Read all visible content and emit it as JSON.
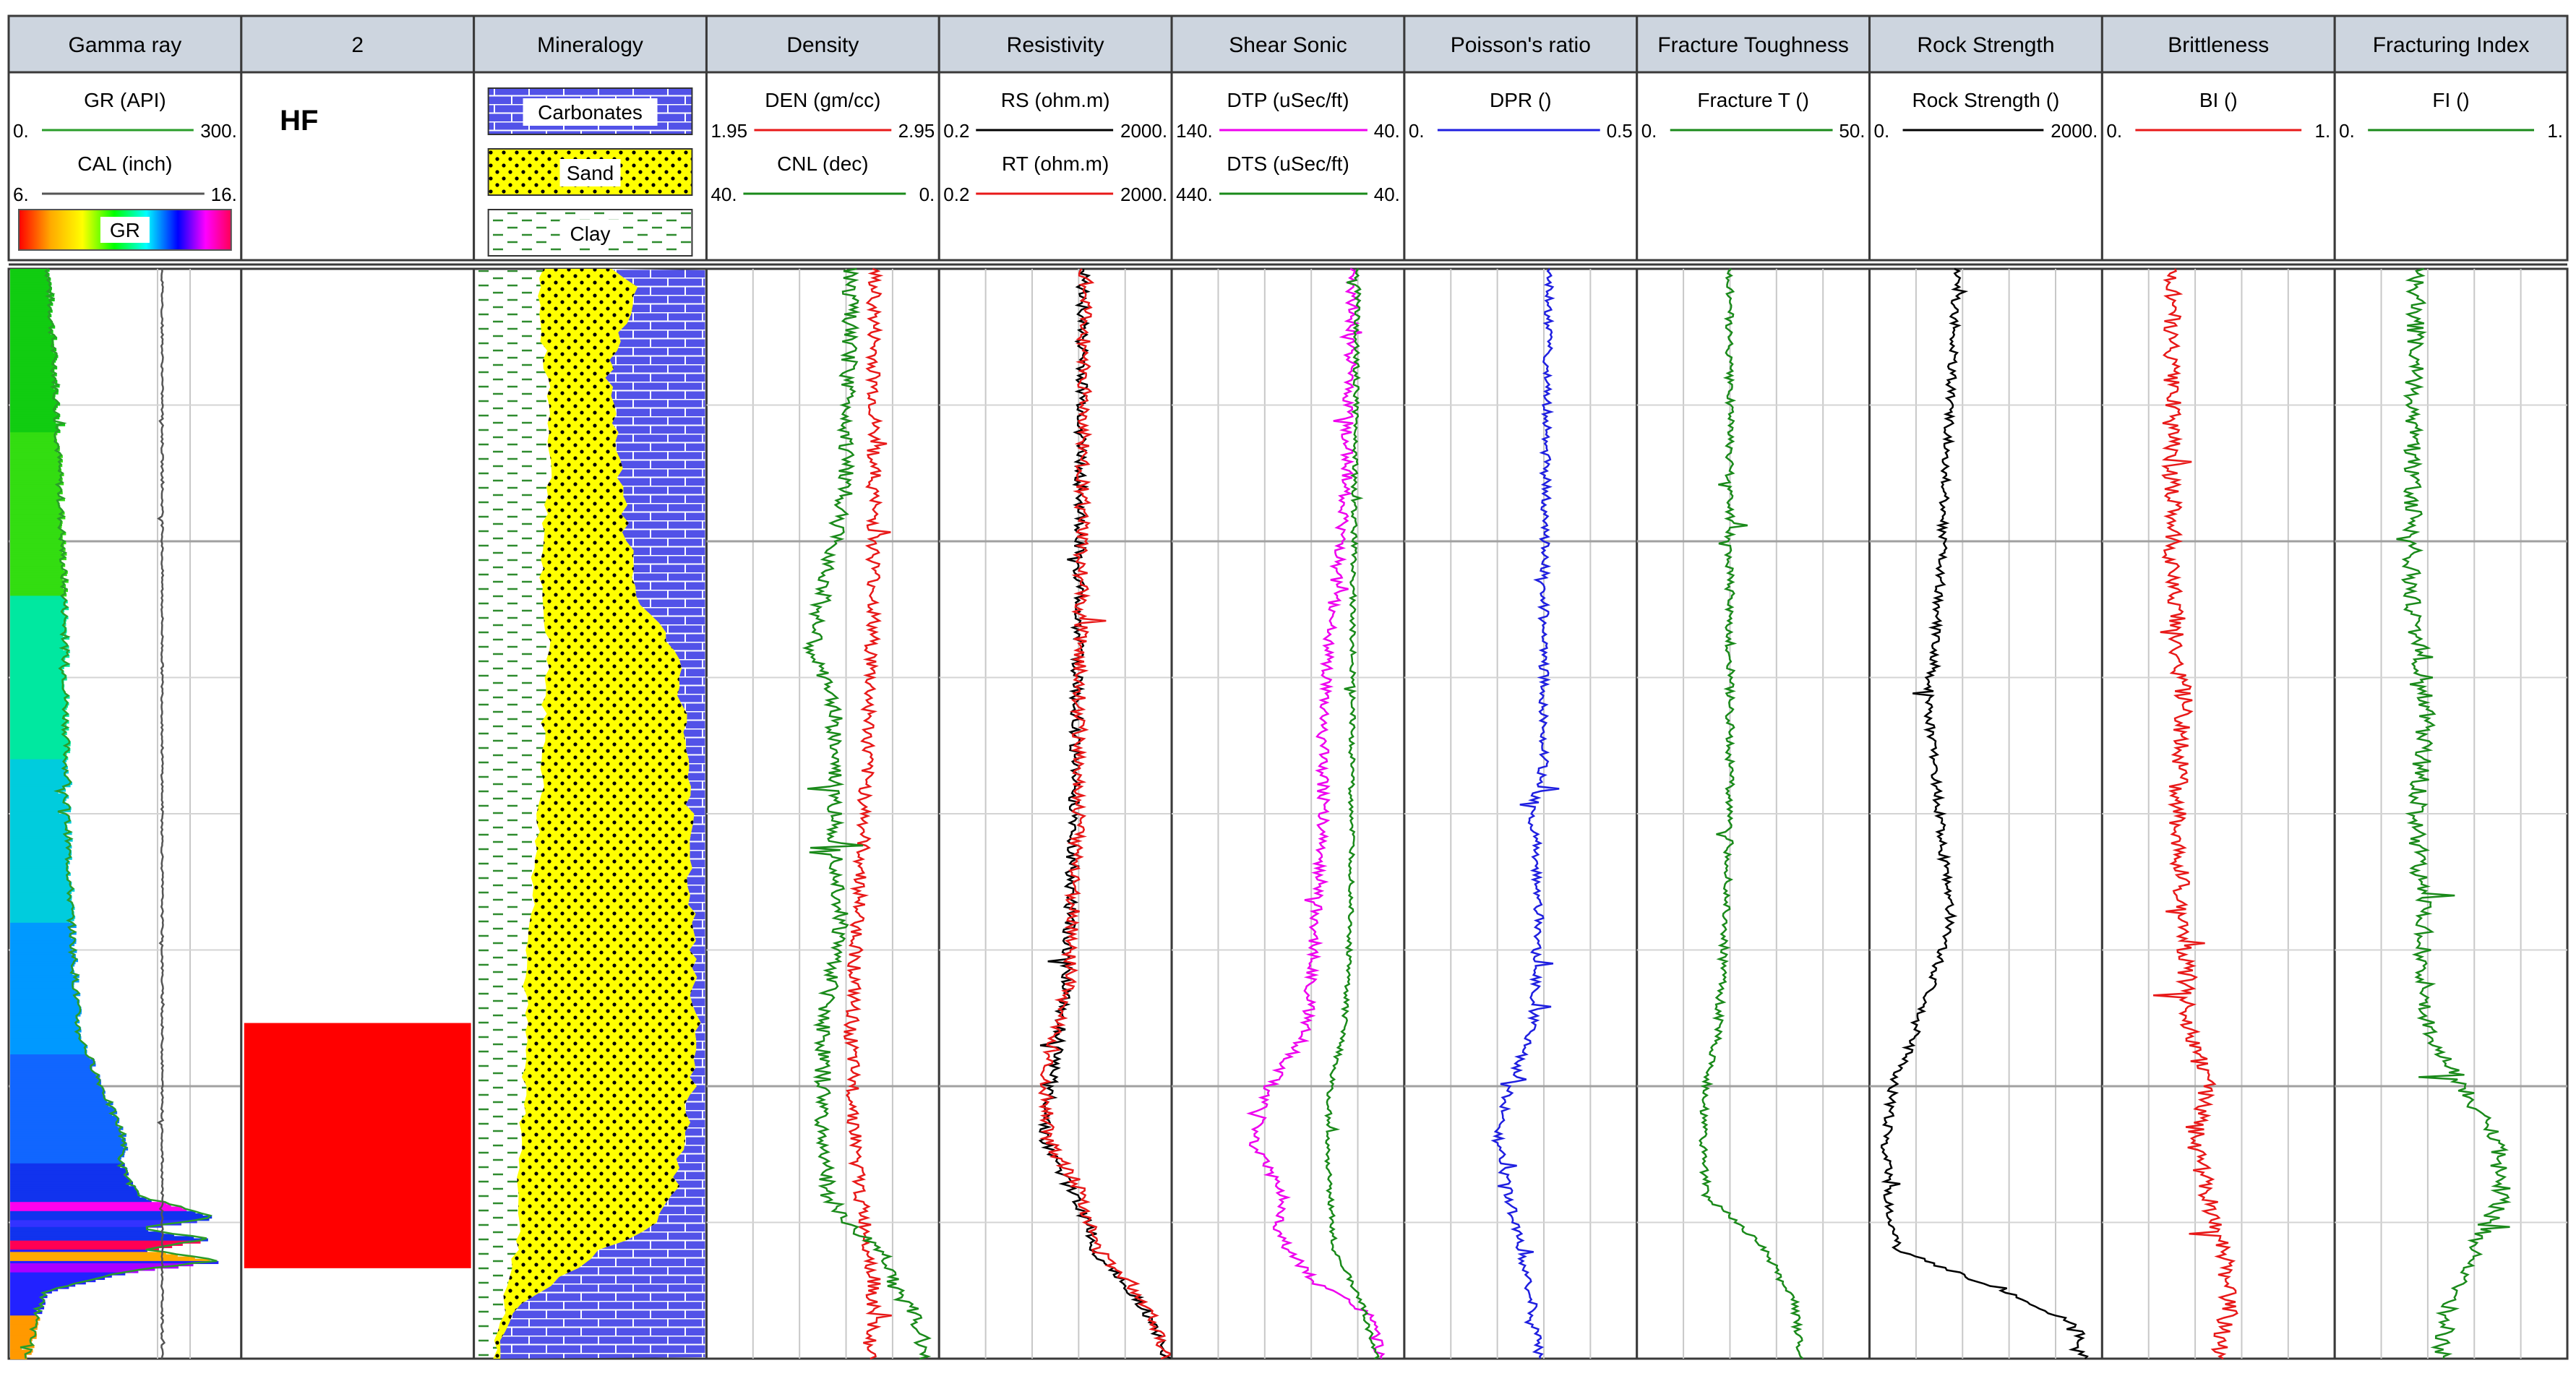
{
  "chart_data": {
    "type": "line",
    "depth_samples": 480,
    "tracks": [
      {
        "title": "Gamma ray",
        "kind": "gr",
        "curves": [
          {
            "name": "GR (API)",
            "min": "0.",
            "max": "300.",
            "color": "#2a9d2a"
          },
          {
            "name": "CAL (inch)",
            "min": "6.",
            "max": "16.",
            "color": "#555555"
          }
        ],
        "colorbar_label": "GR",
        "grid_cols": [
          0.64,
          0.78
        ]
      },
      {
        "title": "2",
        "kind": "zone",
        "zone_label": "HF",
        "zone_color": "#ff0000",
        "zone_top": 0.692,
        "zone_bottom": 0.917
      },
      {
        "title": "Mineralogy",
        "kind": "mineralogy",
        "legend": [
          {
            "name": "Carbonates",
            "pattern": "brick",
            "fill": "#5252e8",
            "line": "#ffffff"
          },
          {
            "name": "Sand",
            "pattern": "dots",
            "fill": "#ffff00",
            "line": "#000000"
          },
          {
            "name": "Clay",
            "pattern": "dash",
            "fill": "#ffffff",
            "line": "#2e8b2e"
          }
        ]
      },
      {
        "title": "Density",
        "kind": "log",
        "curves": [
          {
            "name": "DEN (gm/cc)",
            "min": "1.95",
            "max": "2.95",
            "color": "#e81919"
          },
          {
            "name": "CNL (dec)",
            "min": "40.",
            "max": "0.",
            "color": "#1a8a1a"
          }
        ]
      },
      {
        "title": "Resistivity",
        "kind": "log",
        "curves": [
          {
            "name": "RS (ohm.m)",
            "min": "0.2",
            "max": "2000.",
            "color": "#000000"
          },
          {
            "name": "RT (ohm.m)",
            "min": "0.2",
            "max": "2000.",
            "color": "#e81919"
          }
        ]
      },
      {
        "title": "Shear Sonic",
        "kind": "log",
        "curves": [
          {
            "name": "DTP (uSec/ft)",
            "min": "140.",
            "max": "40.",
            "color": "#ee00ee"
          },
          {
            "name": "DTS (uSec/ft)",
            "min": "440.",
            "max": "40.",
            "color": "#1a8a1a"
          }
        ]
      },
      {
        "title": "Poisson's ratio",
        "kind": "log",
        "curves": [
          {
            "name": "DPR ()",
            "min": "0.",
            "max": "0.5",
            "color": "#1f1fe0"
          }
        ]
      },
      {
        "title": "Fracture Toughness",
        "kind": "log",
        "curves": [
          {
            "name": "Fracture T ()",
            "min": "0.",
            "max": "50.",
            "color": "#1a8a1a"
          }
        ]
      },
      {
        "title": "Rock Strength",
        "kind": "log",
        "curves": [
          {
            "name": "Rock Strength ()",
            "min": "0.",
            "max": "2000.",
            "color": "#000000"
          }
        ]
      },
      {
        "title": "Brittleness",
        "kind": "log",
        "curves": [
          {
            "name": "BI ()",
            "min": "0.",
            "max": "1.",
            "color": "#e81919"
          }
        ]
      },
      {
        "title": "Fracturing Index",
        "kind": "log",
        "curves": [
          {
            "name": "FI ()",
            "min": "0.",
            "max": "1.",
            "color": "#1a8a1a"
          }
        ]
      }
    ],
    "sand_boundary": {
      "d": [
        0,
        0.02,
        0.05,
        0.1,
        0.18,
        0.25,
        0.3,
        0.35,
        0.4,
        0.45,
        0.5,
        0.55,
        0.6,
        0.65,
        0.7,
        0.75,
        0.8,
        0.85,
        0.88,
        0.9,
        0.93,
        0.96,
        1.0
      ],
      "left": [
        0.3,
        0.28,
        0.28,
        0.32,
        0.33,
        0.3,
        0.28,
        0.33,
        0.3,
        0.3,
        0.28,
        0.26,
        0.25,
        0.22,
        0.22,
        0.22,
        0.2,
        0.2,
        0.19,
        0.18,
        0.15,
        0.12,
        0.08
      ],
      "right": [
        0.61,
        0.7,
        0.65,
        0.58,
        0.62,
        0.66,
        0.7,
        0.86,
        0.9,
        0.92,
        0.93,
        0.92,
        0.94,
        0.94,
        0.96,
        0.94,
        0.9,
        0.86,
        0.75,
        0.55,
        0.35,
        0.15,
        0.1
      ]
    },
    "curve_profiles": {
      "GR (API)": {
        "d": [
          0,
          0.1,
          0.2,
          0.3,
          0.5,
          0.6,
          0.7,
          0.75,
          0.8,
          0.82,
          0.85,
          0.87,
          0.88,
          0.89,
          0.9,
          0.91,
          0.92,
          0.93,
          0.94,
          0.96,
          1.0
        ],
        "v": [
          0.17,
          0.2,
          0.22,
          0.24,
          0.25,
          0.27,
          0.3,
          0.4,
          0.5,
          0.48,
          0.55,
          0.9,
          0.55,
          0.85,
          0.6,
          0.9,
          0.5,
          0.3,
          0.15,
          0.12,
          0.08
        ],
        "n": 0.015
      },
      "CAL (inch)": {
        "d": [
          0,
          1
        ],
        "v": [
          0.66,
          0.66
        ],
        "n": 0.004
      },
      "DEN (gm/cc)": {
        "d": [
          0,
          0.3,
          0.5,
          0.7,
          0.8,
          0.85,
          0.9,
          0.93,
          1.0
        ],
        "v": [
          0.72,
          0.72,
          0.68,
          0.62,
          0.64,
          0.66,
          0.7,
          0.72,
          0.7
        ],
        "n": 0.03
      },
      "CNL (dec)": {
        "d": [
          0,
          0.2,
          0.3,
          0.35,
          0.4,
          0.5,
          0.6,
          0.7,
          0.8,
          0.85,
          0.88,
          0.9,
          0.92,
          0.94,
          0.96,
          1.0
        ],
        "v": [
          0.62,
          0.6,
          0.5,
          0.45,
          0.55,
          0.55,
          0.58,
          0.5,
          0.5,
          0.52,
          0.62,
          0.75,
          0.8,
          0.82,
          0.9,
          0.95
        ],
        "n": 0.035
      },
      "RS (ohm.m)": {
        "d": [
          0,
          0.3,
          0.5,
          0.65,
          0.7,
          0.75,
          0.8,
          0.85,
          0.88,
          0.9,
          0.93,
          0.96,
          1.0
        ],
        "v": [
          0.62,
          0.6,
          0.58,
          0.55,
          0.52,
          0.48,
          0.45,
          0.58,
          0.65,
          0.66,
          0.8,
          0.9,
          0.98
        ],
        "n": 0.025
      },
      "RT (ohm.m)": {
        "d": [
          0,
          0.3,
          0.5,
          0.65,
          0.7,
          0.75,
          0.8,
          0.85,
          0.88,
          0.9,
          0.93,
          0.96,
          1.0
        ],
        "v": [
          0.63,
          0.61,
          0.6,
          0.56,
          0.5,
          0.46,
          0.47,
          0.62,
          0.65,
          0.68,
          0.82,
          0.92,
          0.98
        ],
        "n": 0.03
      },
      "DTP (uSec/ft)": {
        "d": [
          0,
          0.2,
          0.3,
          0.4,
          0.5,
          0.6,
          0.7,
          0.75,
          0.8,
          0.85,
          0.88,
          0.9,
          0.93,
          0.96,
          1.0
        ],
        "v": [
          0.78,
          0.75,
          0.7,
          0.65,
          0.65,
          0.62,
          0.58,
          0.42,
          0.35,
          0.48,
          0.45,
          0.5,
          0.62,
          0.85,
          0.9
        ],
        "n": 0.025
      },
      "DTS (uSec/ft)": {
        "d": [
          0,
          0.3,
          0.6,
          0.7,
          0.75,
          0.8,
          0.85,
          0.9,
          0.95,
          1.0
        ],
        "v": [
          0.8,
          0.78,
          0.77,
          0.74,
          0.68,
          0.67,
          0.68,
          0.7,
          0.82,
          0.88
        ],
        "n": 0.012
      },
      "DPR ()": {
        "d": [
          0,
          0.3,
          0.45,
          0.5,
          0.6,
          0.7,
          0.75,
          0.8,
          0.85,
          0.9,
          0.95,
          1.0
        ],
        "v": [
          0.62,
          0.6,
          0.6,
          0.55,
          0.58,
          0.55,
          0.45,
          0.4,
          0.45,
          0.5,
          0.55,
          0.58
        ],
        "n": 0.02
      },
      "Fracture T ()": {
        "d": [
          0,
          0.3,
          0.5,
          0.6,
          0.7,
          0.75,
          0.8,
          0.85,
          0.9,
          0.95,
          1.0
        ],
        "v": [
          0.4,
          0.4,
          0.4,
          0.38,
          0.35,
          0.3,
          0.28,
          0.3,
          0.55,
          0.68,
          0.7
        ],
        "n": 0.018
      },
      "Rock Strength ()": {
        "d": [
          0,
          0.3,
          0.4,
          0.5,
          0.6,
          0.7,
          0.75,
          0.8,
          0.85,
          0.9,
          0.94,
          0.97,
          1.0
        ],
        "v": [
          0.38,
          0.3,
          0.25,
          0.3,
          0.35,
          0.2,
          0.1,
          0.07,
          0.08,
          0.12,
          0.6,
          0.9,
          0.92
        ],
        "n": 0.02
      },
      "BI ()": {
        "d": [
          0,
          0.3,
          0.4,
          0.5,
          0.6,
          0.7,
          0.75,
          0.8,
          0.85,
          0.9,
          0.95,
          1.0
        ],
        "v": [
          0.3,
          0.3,
          0.35,
          0.32,
          0.35,
          0.38,
          0.45,
          0.4,
          0.45,
          0.52,
          0.55,
          0.5
        ],
        "n": 0.04
      },
      "FI ()": {
        "d": [
          0,
          0.3,
          0.4,
          0.5,
          0.6,
          0.7,
          0.75,
          0.8,
          0.85,
          0.9,
          0.95,
          1.0
        ],
        "v": [
          0.35,
          0.33,
          0.4,
          0.35,
          0.38,
          0.4,
          0.55,
          0.7,
          0.72,
          0.6,
          0.5,
          0.45
        ],
        "n": 0.04
      }
    }
  }
}
